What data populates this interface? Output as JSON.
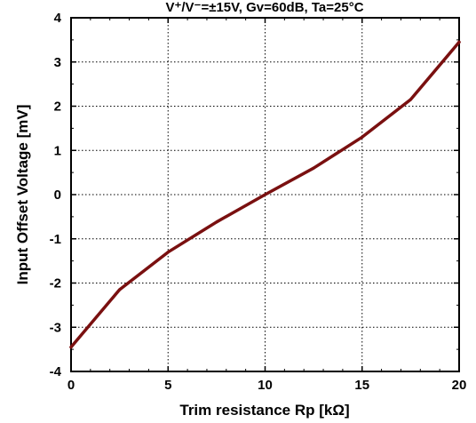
{
  "chart_data": {
    "type": "line",
    "title": "V⁺/V⁻=±15V, Gv=60dB, Ta=25°C",
    "xlabel": "Trim resistance Rp [kΩ]",
    "ylabel": "Input Offset Voltage [mV]",
    "xlim": [
      0,
      20
    ],
    "ylim": [
      -4,
      4
    ],
    "xticks": [
      0,
      5,
      10,
      15,
      20
    ],
    "xtick_labels": [
      "0",
      "5",
      "10",
      "15",
      "20"
    ],
    "yticks": [
      -4,
      -3,
      -2,
      -1,
      0,
      1,
      2,
      3,
      4
    ],
    "ytick_labels": [
      "-4",
      "-3",
      "-2",
      "-1",
      "0",
      "1",
      "2",
      "3",
      "4"
    ],
    "grid": true,
    "colors": {
      "line": "#7a1010",
      "grid": "#000000",
      "frame": "#000000"
    },
    "series": [
      {
        "x": [
          0,
          2.5,
          5,
          7.5,
          10,
          12.5,
          15,
          17.5,
          20
        ],
        "values": [
          -3.45,
          -2.15,
          -1.3,
          -0.62,
          0.0,
          0.6,
          1.3,
          2.15,
          3.45
        ]
      }
    ]
  }
}
